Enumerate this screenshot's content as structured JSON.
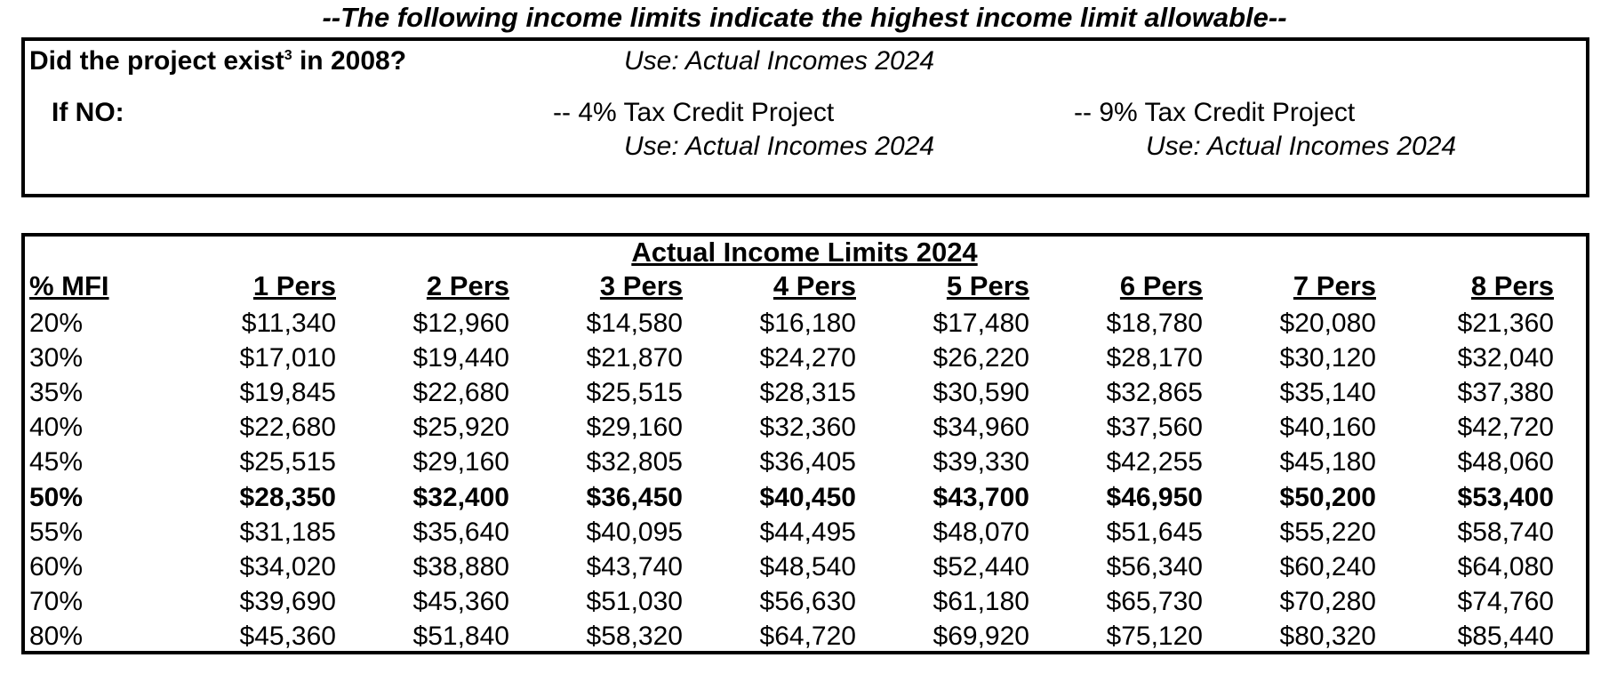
{
  "heading": "--The following income limits indicate the highest income limit allowable--",
  "criteria": {
    "question_main": "Did the project exist",
    "question_sup": "3",
    "question_tail": " in 2008?",
    "question_answer": "Use: Actual Incomes 2024",
    "if_no_label": "If NO:",
    "option_4pct_label": "-- 4% Tax Credit Project",
    "option_4pct_use": "Use: Actual Incomes 2024",
    "option_9pct_label": "-- 9% Tax Credit Project",
    "option_9pct_use": "Use: Actual Incomes 2024"
  },
  "table": {
    "title": "Actual Income Limits 2024",
    "columns": [
      "% MFI",
      "1 Pers",
      "2 Pers",
      "3 Pers",
      "4 Pers",
      "5 Pers",
      "6 Pers",
      "7 Pers",
      "8 Pers"
    ],
    "rows": [
      {
        "pct": "20%",
        "values": [
          "$11,340",
          "$12,960",
          "$14,580",
          "$16,180",
          "$17,480",
          "$18,780",
          "$20,080",
          "$21,360"
        ],
        "bold": false
      },
      {
        "pct": "30%",
        "values": [
          "$17,010",
          "$19,440",
          "$21,870",
          "$24,270",
          "$26,220",
          "$28,170",
          "$30,120",
          "$32,040"
        ],
        "bold": false
      },
      {
        "pct": "35%",
        "values": [
          "$19,845",
          "$22,680",
          "$25,515",
          "$28,315",
          "$30,590",
          "$32,865",
          "$35,140",
          "$37,380"
        ],
        "bold": false
      },
      {
        "pct": "40%",
        "values": [
          "$22,680",
          "$25,920",
          "$29,160",
          "$32,360",
          "$34,960",
          "$37,560",
          "$40,160",
          "$42,720"
        ],
        "bold": false
      },
      {
        "pct": "45%",
        "values": [
          "$25,515",
          "$29,160",
          "$32,805",
          "$36,405",
          "$39,330",
          "$42,255",
          "$45,180",
          "$48,060"
        ],
        "bold": false
      },
      {
        "pct": "50%",
        "values": [
          "$28,350",
          "$32,400",
          "$36,450",
          "$40,450",
          "$43,700",
          "$46,950",
          "$50,200",
          "$53,400"
        ],
        "bold": true
      },
      {
        "pct": "55%",
        "values": [
          "$31,185",
          "$35,640",
          "$40,095",
          "$44,495",
          "$48,070",
          "$51,645",
          "$55,220",
          "$58,740"
        ],
        "bold": false
      },
      {
        "pct": "60%",
        "values": [
          "$34,020",
          "$38,880",
          "$43,740",
          "$48,540",
          "$52,440",
          "$56,340",
          "$60,240",
          "$64,080"
        ],
        "bold": false
      },
      {
        "pct": "70%",
        "values": [
          "$39,690",
          "$45,360",
          "$51,030",
          "$56,630",
          "$61,180",
          "$65,730",
          "$70,280",
          "$74,760"
        ],
        "bold": false
      },
      {
        "pct": "80%",
        "values": [
          "$45,360",
          "$51,840",
          "$58,320",
          "$64,720",
          "$69,920",
          "$75,120",
          "$80,320",
          "$85,440"
        ],
        "bold": false
      }
    ]
  }
}
